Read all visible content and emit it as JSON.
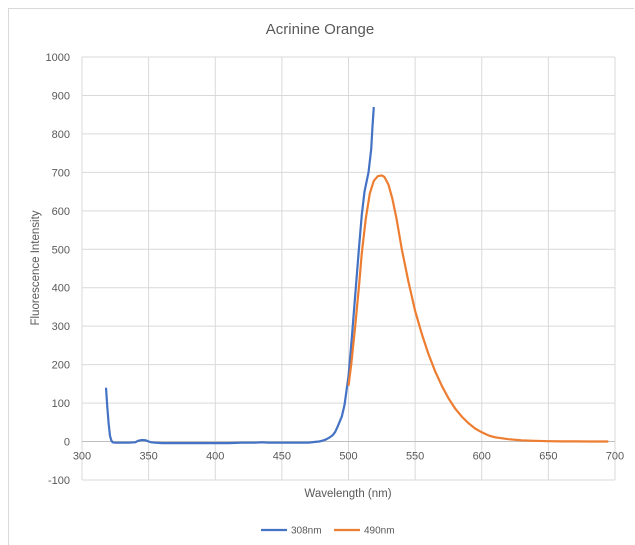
{
  "chart_data": {
    "type": "line",
    "title": "Acrinine Orange",
    "xlabel": "Wavelength (nm)",
    "ylabel": "Fluorescence Intensity",
    "xlim": [
      300,
      700
    ],
    "ylim": [
      -100,
      1000
    ],
    "xticks": [
      300,
      350,
      400,
      450,
      500,
      550,
      600,
      650,
      700
    ],
    "yticks": [
      -100,
      0,
      100,
      200,
      300,
      400,
      500,
      600,
      700,
      800,
      900,
      1000
    ],
    "grid": true,
    "legend_position": "bottom",
    "series": [
      {
        "name": "308nm",
        "color": "#4472c4",
        "x": [
          318,
          319,
          320,
          321,
          322,
          323,
          325,
          330,
          335,
          340,
          342,
          345,
          348,
          350,
          352,
          355,
          360,
          370,
          380,
          390,
          400,
          410,
          420,
          430,
          435,
          440,
          450,
          460,
          470,
          475,
          478,
          480,
          483,
          485,
          488,
          490,
          492,
          495,
          497,
          500,
          502,
          505,
          508,
          510,
          512,
          515,
          517,
          518,
          519
        ],
        "y": [
          140,
          90,
          45,
          15,
          3,
          -2,
          -3,
          -3,
          -3,
          -2,
          2,
          4,
          3,
          0,
          -2,
          -3,
          -4,
          -4,
          -4,
          -4,
          -4,
          -4,
          -3,
          -3,
          -2,
          -3,
          -3,
          -3,
          -3,
          -1,
          0,
          2,
          5,
          9,
          16,
          25,
          40,
          65,
          95,
          170,
          250,
          380,
          510,
          590,
          650,
          700,
          760,
          820,
          870
        ]
      },
      {
        "name": "490nm",
        "color": "#ed7d31",
        "x": [
          500,
          502,
          505,
          508,
          510,
          513,
          516,
          519,
          522,
          525,
          527,
          530,
          533,
          536,
          540,
          545,
          550,
          555,
          560,
          565,
          570,
          575,
          580,
          585,
          590,
          595,
          600,
          605,
          610,
          620,
          630,
          640,
          650,
          660,
          670,
          680,
          690,
          695
        ],
        "y": [
          145,
          200,
          300,
          410,
          490,
          580,
          645,
          678,
          690,
          692,
          688,
          668,
          630,
          580,
          500,
          415,
          340,
          280,
          228,
          183,
          145,
          113,
          86,
          65,
          48,
          34,
          24,
          16,
          11,
          6,
          3,
          2,
          1,
          0.5,
          0.3,
          0.1,
          0,
          0
        ]
      }
    ]
  }
}
